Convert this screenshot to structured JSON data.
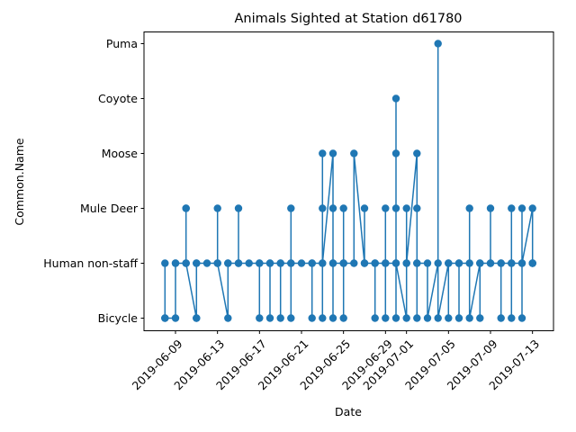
{
  "chart_data": {
    "type": "line",
    "title": "Animals Sighted at Station d61780",
    "xlabel": "Date",
    "ylabel": "Common.Name",
    "categories": [
      "Bicycle",
      "Human non-staff",
      "Mule Deer",
      "Moose",
      "Coyote",
      "Puma"
    ],
    "x_ticks": [
      "2019-06-09",
      "2019-06-13",
      "2019-06-17",
      "2019-06-21",
      "2019-06-25",
      "2019-06-29",
      "2019-07-01",
      "2019-07-05",
      "2019-07-09",
      "2019-07-13"
    ],
    "xlim": [
      "2019-06-06",
      "2019-07-15"
    ],
    "color": "#1f77b4",
    "marker": "circle",
    "grid": false,
    "legend": "none",
    "series": [
      {
        "x": [
          "2019-06-08",
          "2019-06-08",
          "2019-06-08",
          "2019-06-09",
          "2019-06-09",
          "2019-06-09",
          "2019-06-10",
          "2019-06-10",
          "2019-06-10",
          "2019-06-10",
          "2019-06-11",
          "2019-06-11",
          "2019-06-11",
          "2019-06-11",
          "2019-06-12",
          "2019-06-13",
          "2019-06-13",
          "2019-06-13",
          "2019-06-14",
          "2019-06-14",
          "2019-06-14",
          "2019-06-15",
          "2019-06-15",
          "2019-06-15",
          "2019-06-16",
          "2019-06-17",
          "2019-06-17",
          "2019-06-17",
          "2019-06-18",
          "2019-06-18",
          "2019-06-18",
          "2019-06-19",
          "2019-06-19",
          "2019-06-19",
          "2019-06-20",
          "2019-06-20",
          "2019-06-20",
          "2019-06-20",
          "2019-06-21",
          "2019-06-22",
          "2019-06-22",
          "2019-06-22",
          "2019-06-23",
          "2019-06-23",
          "2019-06-23",
          "2019-06-23",
          "2019-06-23",
          "2019-06-24",
          "2019-06-24",
          "2019-06-24",
          "2019-06-24",
          "2019-06-24",
          "2019-06-25",
          "2019-06-25",
          "2019-06-25",
          "2019-06-25",
          "2019-06-26",
          "2019-06-26",
          "2019-06-27",
          "2019-06-27",
          "2019-06-27",
          "2019-06-28",
          "2019-06-28",
          "2019-06-28",
          "2019-06-29",
          "2019-06-29",
          "2019-06-29",
          "2019-06-29",
          "2019-06-30",
          "2019-06-30",
          "2019-06-30",
          "2019-06-30",
          "2019-06-30",
          "2019-06-30",
          "2019-07-01",
          "2019-07-01",
          "2019-07-01",
          "2019-07-01",
          "2019-07-02",
          "2019-07-02",
          "2019-07-02",
          "2019-07-02",
          "2019-07-02",
          "2019-07-03",
          "2019-07-03",
          "2019-07-04",
          "2019-07-04",
          "2019-07-04",
          "2019-07-05",
          "2019-07-05",
          "2019-07-05",
          "2019-07-06",
          "2019-07-06",
          "2019-07-06",
          "2019-07-07",
          "2019-07-07",
          "2019-07-07",
          "2019-07-08",
          "2019-07-08",
          "2019-07-08",
          "2019-07-09",
          "2019-07-09",
          "2019-07-09",
          "2019-07-10",
          "2019-07-10",
          "2019-07-10",
          "2019-07-11",
          "2019-07-11",
          "2019-07-11",
          "2019-07-11",
          "2019-07-12",
          "2019-07-12",
          "2019-07-12",
          "2019-07-12",
          "2019-07-13",
          "2019-07-13",
          "2019-07-13",
          "2019-07-13"
        ],
        "y": [
          "Bicycle",
          "Human non-staff",
          "Bicycle",
          "Bicycle",
          "Human non-staff",
          "Human non-staff",
          "Human non-staff",
          "Mule Deer",
          "Mule Deer",
          "Human non-staff",
          "Bicycle",
          "Human non-staff",
          "Bicycle",
          "Human non-staff",
          "Human non-staff",
          "Human non-staff",
          "Mule Deer",
          "Human non-staff",
          "Bicycle",
          "Human non-staff",
          "Human non-staff",
          "Human non-staff",
          "Mule Deer",
          "Human non-staff",
          "Human non-staff",
          "Human non-staff",
          "Bicycle",
          "Human non-staff",
          "Human non-staff",
          "Bicycle",
          "Human non-staff",
          "Human non-staff",
          "Bicycle",
          "Human non-staff",
          "Human non-staff",
          "Mule Deer",
          "Bicycle",
          "Human non-staff",
          "Human non-staff",
          "Human non-staff",
          "Bicycle",
          "Human non-staff",
          "Human non-staff",
          "Moose",
          "Bicycle",
          "Mule Deer",
          "Human non-staff",
          "Moose",
          "Bicycle",
          "Human non-staff",
          "Mule Deer",
          "Human non-staff",
          "Human non-staff",
          "Mule Deer",
          "Bicycle",
          "Human non-staff",
          "Human non-staff",
          "Moose",
          "Human non-staff",
          "Mule Deer",
          "Human non-staff",
          "Human non-staff",
          "Bicycle",
          "Human non-staff",
          "Human non-staff",
          "Mule Deer",
          "Bicycle",
          "Human non-staff",
          "Human non-staff",
          "Coyote",
          "Moose",
          "Mule Deer",
          "Bicycle",
          "Human non-staff",
          "Bicycle",
          "Human non-staff",
          "Mule Deer",
          "Human non-staff",
          "Moose",
          "Mule Deer",
          "Human non-staff",
          "Bicycle",
          "Human non-staff",
          "Human non-staff",
          "Bicycle",
          "Human non-staff",
          "Puma",
          "Bicycle",
          "Human non-staff",
          "Bicycle",
          "Human non-staff",
          "Human non-staff",
          "Bicycle",
          "Human non-staff",
          "Human non-staff",
          "Mule Deer",
          "Bicycle",
          "Human non-staff",
          "Bicycle",
          "Human non-staff",
          "Human non-staff",
          "Mule Deer",
          "Human non-staff",
          "Human non-staff",
          "Bicycle",
          "Human non-staff",
          "Human non-staff",
          "Mule Deer",
          "Bicycle",
          "Human non-staff",
          "Human non-staff",
          "Mule Deer",
          "Bicycle",
          "Human non-staff",
          "Mule Deer",
          "Human non-staff",
          "Human non-staff",
          "Human non-staff"
        ]
      }
    ]
  }
}
